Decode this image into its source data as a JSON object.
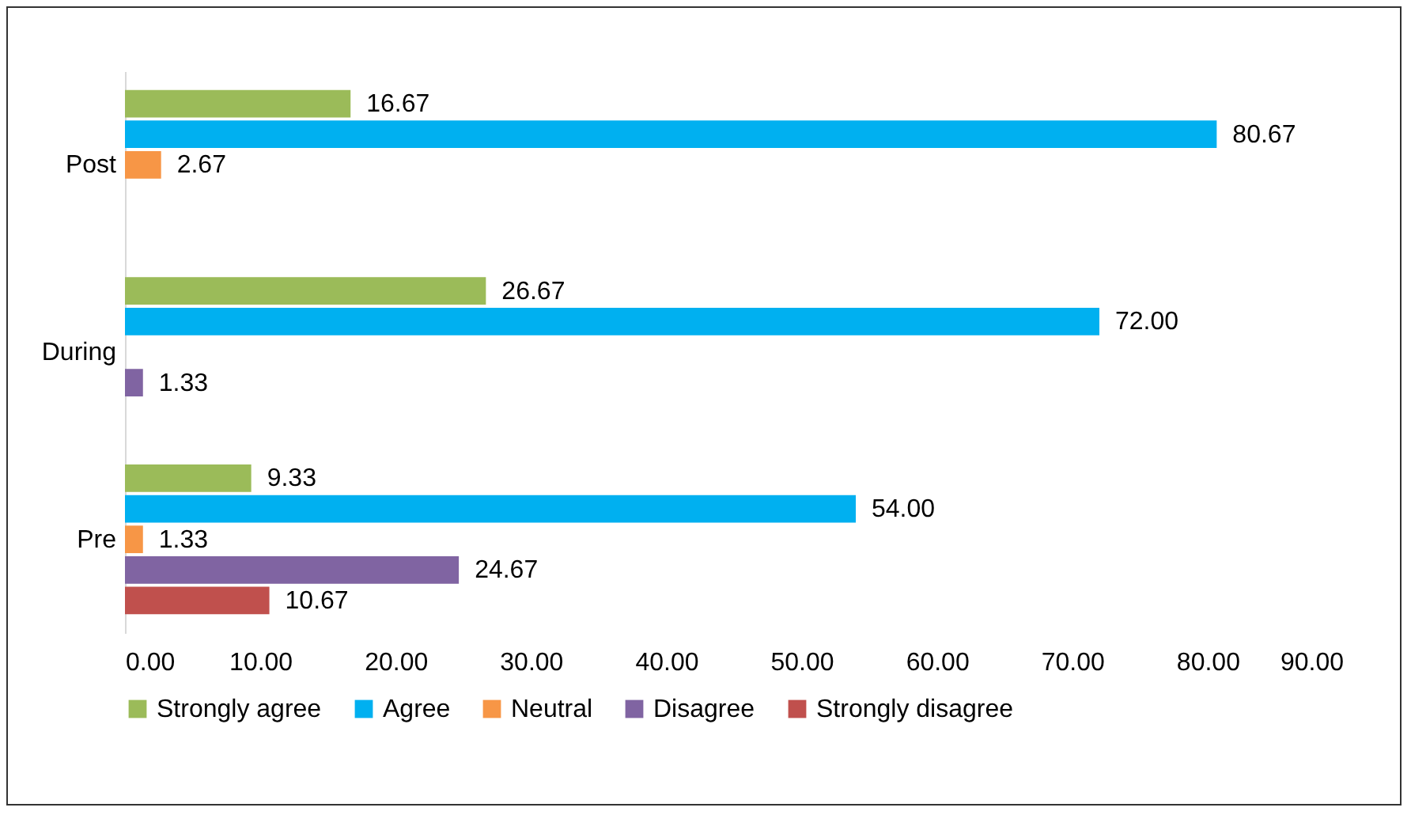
{
  "chart_data": {
    "type": "bar",
    "orientation": "horizontal",
    "categories": [
      "Post",
      "During",
      "Pre"
    ],
    "series": [
      {
        "name": "Strongly agree",
        "color": "#9bbb59",
        "values": [
          16.67,
          26.67,
          9.33
        ],
        "value_labels": [
          "16.67",
          "26.67",
          "9.33"
        ]
      },
      {
        "name": "Agree",
        "color": "#00b0f0",
        "values": [
          80.67,
          72.0,
          54.0
        ],
        "value_labels": [
          "80.67",
          "72.00",
          "54.00"
        ]
      },
      {
        "name": "Neutral",
        "color": "#f79646",
        "values": [
          2.67,
          null,
          1.33
        ],
        "value_labels": [
          "2.67",
          null,
          "1.33"
        ]
      },
      {
        "name": "Disagree",
        "color": "#8064a2",
        "values": [
          null,
          1.33,
          24.67
        ],
        "value_labels": [
          null,
          "1.33",
          "24.67"
        ]
      },
      {
        "name": "Strongly disagree",
        "color": "#c0504d",
        "values": [
          null,
          null,
          10.67
        ],
        "value_labels": [
          null,
          null,
          "10.67"
        ]
      }
    ],
    "xlim": [
      0,
      90
    ],
    "xticks": [
      {
        "value": 0,
        "label": "0.00"
      },
      {
        "value": 10,
        "label": "10.00"
      },
      {
        "value": 20,
        "label": "20.00"
      },
      {
        "value": 30,
        "label": "30.00"
      },
      {
        "value": 40,
        "label": "40.00"
      },
      {
        "value": 50,
        "label": "50.00"
      },
      {
        "value": 60,
        "label": "60.00"
      },
      {
        "value": 70,
        "label": "70.00"
      },
      {
        "value": 80,
        "label": "80.00"
      },
      {
        "value": 90,
        "label": "90.00"
      }
    ],
    "legend": "bottom"
  }
}
